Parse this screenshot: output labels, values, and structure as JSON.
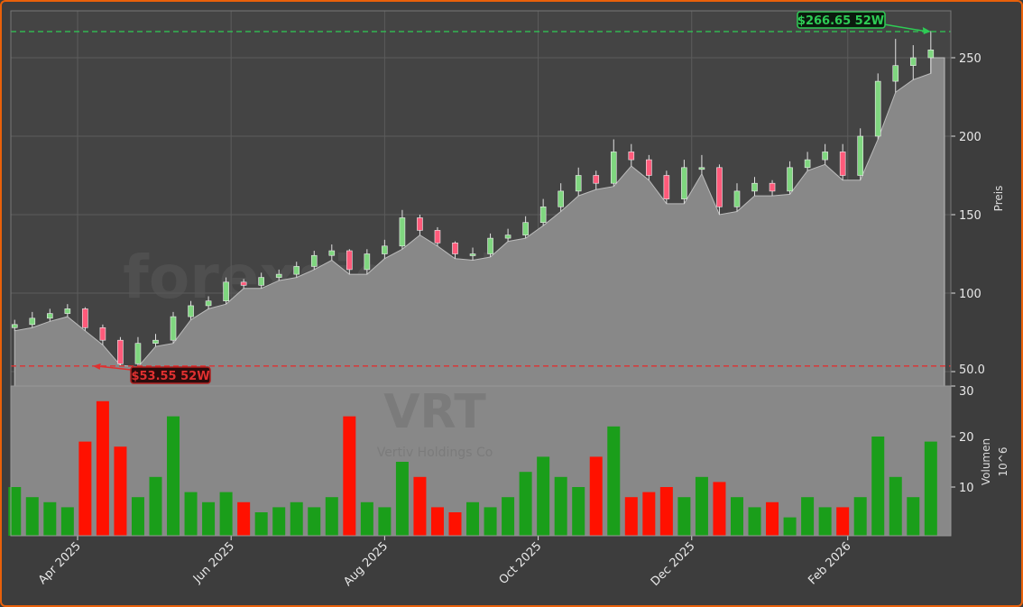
{
  "chart_data": {
    "type": "candlestick",
    "ticker": "VRT",
    "company": "Vertiv Holdings Co",
    "watermark": "forexsignale.trade",
    "price_axis": {
      "label": "Preis",
      "ticks": [
        "50.0",
        "100",
        "150",
        "200",
        "250"
      ],
      "ylim": [
        40,
        280
      ]
    },
    "volume_axis": {
      "label": "Volumen",
      "multiplier": "10^6",
      "ticks": [
        "10",
        "20",
        "30"
      ],
      "ylim": [
        0,
        30
      ]
    },
    "x_ticks": [
      {
        "date": "2025-04-01",
        "label": "Apr 2025"
      },
      {
        "date": "2025-06-01",
        "label": "Jun 2025"
      },
      {
        "date": "2025-08-01",
        "label": "Aug 2025"
      },
      {
        "date": "2025-10-01",
        "label": "Oct 2025"
      },
      {
        "date": "2025-12-01",
        "label": "Dec 2025"
      },
      {
        "date": "2026-02-01",
        "label": "Feb 2026"
      }
    ],
    "grid": true,
    "high_52w": {
      "value": 266.65,
      "label": "$266.65 52W",
      "date": "2026-03-06",
      "color": "#2ecc55"
    },
    "low_52w": {
      "value": 53.55,
      "label": "$53.55 52W",
      "date": "2025-04-07",
      "color": "#e03030"
    },
    "start_date": "2025-03-07",
    "interval_days": 7,
    "close": [
      80,
      84,
      87,
      90,
      78,
      70,
      55,
      68,
      70,
      85,
      92,
      95,
      107,
      105,
      110,
      112,
      117,
      124,
      127,
      115,
      125,
      130,
      148,
      140,
      132,
      125,
      125,
      135,
      137,
      145,
      155,
      165,
      175,
      170,
      190,
      185,
      175,
      160,
      180,
      180,
      155,
      165,
      170,
      165,
      180,
      185,
      190,
      175,
      200,
      235,
      245,
      250,
      255
    ],
    "open": [
      78,
      80,
      84,
      87,
      90,
      78,
      70,
      55,
      68,
      70,
      85,
      92,
      95,
      107,
      105,
      110,
      112,
      117,
      124,
      127,
      115,
      125,
      130,
      148,
      140,
      132,
      125,
      125,
      135,
      137,
      145,
      155,
      165,
      175,
      170,
      190,
      185,
      175,
      160,
      180,
      180,
      155,
      165,
      170,
      165,
      180,
      185,
      190,
      175,
      200,
      235,
      245,
      250
    ],
    "high": [
      83,
      88,
      90,
      93,
      91,
      80,
      72,
      72,
      74,
      88,
      95,
      98,
      110,
      109,
      113,
      115,
      120,
      127,
      131,
      128,
      128,
      134,
      153,
      150,
      142,
      133,
      129,
      138,
      141,
      149,
      160,
      170,
      180,
      178,
      198,
      195,
      188,
      178,
      185,
      188,
      182,
      170,
      174,
      172,
      184,
      190,
      195,
      195,
      205,
      240,
      262,
      258,
      267
    ],
    "low": [
      76,
      78,
      82,
      85,
      76,
      67,
      54,
      53,
      66,
      68,
      83,
      90,
      93,
      103,
      103,
      108,
      110,
      115,
      121,
      112,
      112,
      122,
      128,
      137,
      130,
      122,
      121,
      123,
      133,
      135,
      143,
      152,
      162,
      166,
      168,
      181,
      172,
      157,
      157,
      176,
      150,
      152,
      162,
      162,
      163,
      178,
      182,
      172,
      172,
      198,
      228,
      236,
      240
    ],
    "volume": [
      10,
      8,
      7,
      6,
      19,
      27,
      18,
      8,
      12,
      24,
      9,
      7,
      9,
      7,
      5,
      6,
      7,
      6,
      8,
      24,
      7,
      6,
      15,
      12,
      6,
      5,
      7,
      6,
      8,
      13,
      16,
      12,
      10,
      16,
      22,
      8,
      9,
      10,
      8,
      12,
      11,
      8,
      6,
      7,
      4,
      8,
      6,
      6,
      8,
      20,
      12,
      8,
      19
    ],
    "up_color": "#1a9e1a",
    "down_color": "#ff1100"
  }
}
